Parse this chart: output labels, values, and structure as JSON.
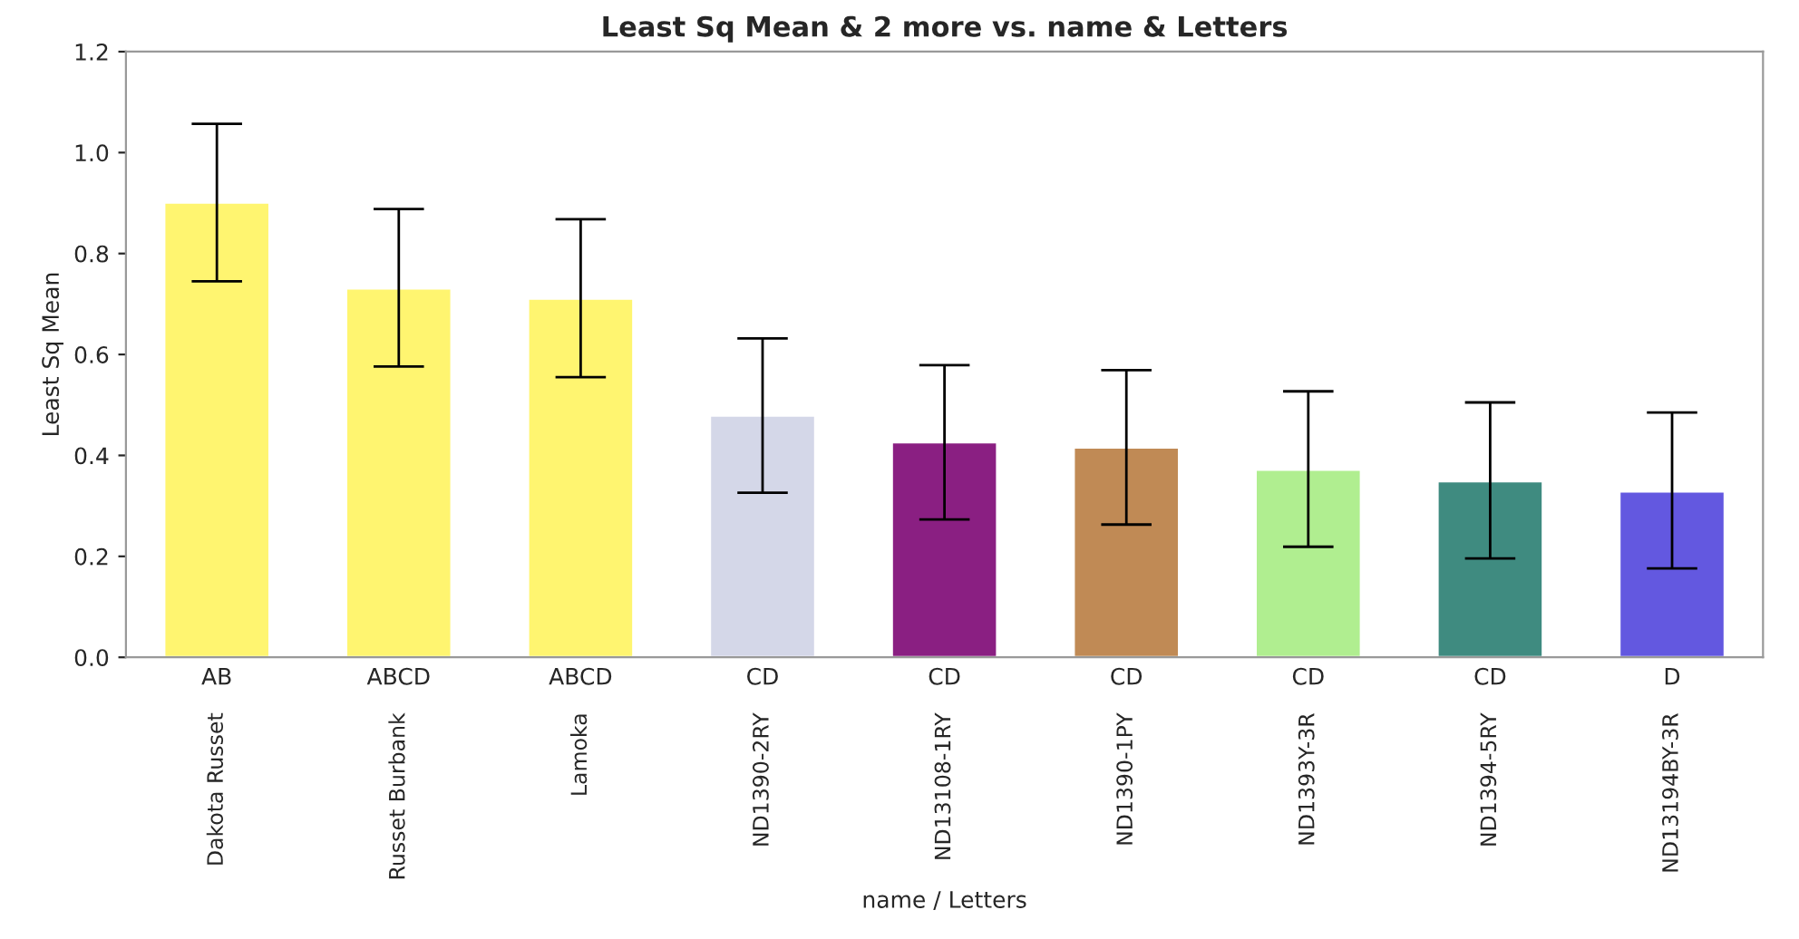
{
  "chart_data": {
    "type": "bar",
    "title": "Least Sq Mean & 2 more vs. name & Letters",
    "xlabel": "name / Letters",
    "ylabel": "Least Sq Mean",
    "categories": [
      "Dakota Russet",
      "Russet Burbank",
      "Lamoka",
      "ND1390-2RY",
      "ND13108-1RY",
      "ND1390-1PY",
      "ND1393Y-3R",
      "ND1394-5RY",
      "ND13194BY-3R"
    ],
    "values": [
      0.901,
      0.731,
      0.711,
      0.479,
      0.426,
      0.416,
      0.372,
      0.349,
      0.329
    ],
    "errors": [
      [
        0.745,
        1.057
      ],
      [
        0.576,
        0.888
      ],
      [
        0.555,
        0.868
      ],
      [
        0.326,
        0.632
      ],
      [
        0.273,
        0.579
      ],
      [
        0.263,
        0.569
      ],
      [
        0.219,
        0.527
      ],
      [
        0.196,
        0.505
      ],
      [
        0.176,
        0.485
      ]
    ],
    "colors": [
      "#fff570",
      "#fff570",
      "#fff570",
      "#d4d7e8",
      "#8a1f82",
      "#c08a55",
      "#b0ee90",
      "#3f8b80",
      "#6358e0"
    ],
    "annotations": [
      {
        "text": "AB",
        "x": "Dakota Russet",
        "y": 0
      },
      {
        "text": "ABCD",
        "x": "Russet Burbank",
        "y": 0
      },
      {
        "text": "ABCD",
        "x": "Lamoka",
        "y": 0
      },
      {
        "text": "CD",
        "x": "ND1390-2RY",
        "y": 0
      },
      {
        "text": "CD",
        "x": "ND13108-1RY",
        "y": 0
      },
      {
        "text": "CD",
        "x": "ND1390-1PY",
        "y": 0
      },
      {
        "text": "CD",
        "x": "ND1393Y-3R",
        "y": 0
      },
      {
        "text": "CD",
        "x": "ND1394-5RY",
        "y": 0
      },
      {
        "text": "D",
        "x": "ND13194BY-3R",
        "y": 0
      }
    ],
    "ylim": [
      0,
      1.2
    ],
    "yticks": [
      {
        "value": 0,
        "label": "0.0"
      },
      0.2,
      0.4,
      0.6,
      0.8,
      {
        "value": 1,
        "label": "1.0"
      },
      1.2
    ],
    "grid": false,
    "legend": false
  }
}
